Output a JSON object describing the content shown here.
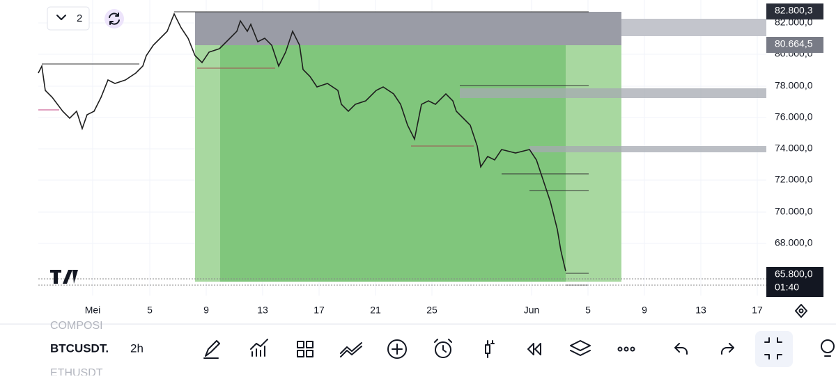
{
  "top_bar": {
    "layout_count": "2"
  },
  "price_axis": {
    "labels": [
      "82.000,0",
      "80.000,0",
      "78.000,0",
      "76.000,0",
      "74.000,0",
      "72.000,0",
      "70.000,0",
      "68.000,0"
    ],
    "markers": [
      {
        "label": "82.800,3"
      },
      {
        "label": "80.664,5"
      },
      {
        "label": "65.800,0",
        "timer": "01:40"
      }
    ]
  },
  "time_axis": {
    "labels": [
      "Mei",
      "5",
      "9",
      "13",
      "17",
      "21",
      "25",
      "Jun",
      "5",
      "9",
      "13",
      "17"
    ]
  },
  "bottom_bar": {
    "symbols": [
      "COMPOSI",
      "BTCUSDT.",
      "ETHUSDT"
    ],
    "interval": "2h"
  }
}
